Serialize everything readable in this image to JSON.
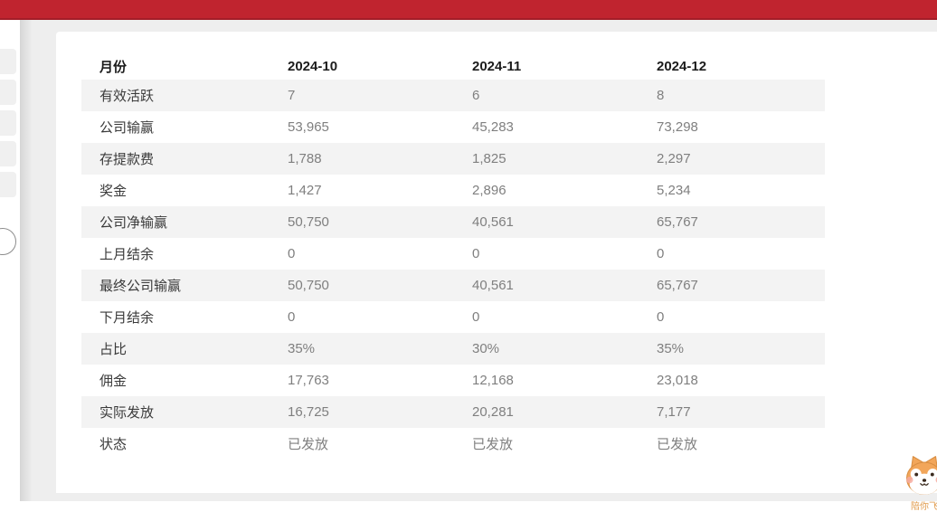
{
  "topbar": {
    "color": "#c0242f"
  },
  "table": {
    "header": [
      "月份",
      "2024-10",
      "2024-11",
      "2024-12"
    ],
    "rows": [
      {
        "label": "有效活跃",
        "values": [
          "7",
          "6",
          "8"
        ]
      },
      {
        "label": "公司输赢",
        "values": [
          "53,965",
          "45,283",
          "73,298"
        ]
      },
      {
        "label": "存提款费",
        "values": [
          "1,788",
          "1,825",
          "2,297"
        ]
      },
      {
        "label": "奖金",
        "values": [
          "1,427",
          "2,896",
          "5,234"
        ]
      },
      {
        "label": "公司净输赢",
        "values": [
          "50,750",
          "40,561",
          "65,767"
        ]
      },
      {
        "label": "上月结余",
        "values": [
          "0",
          "0",
          "0"
        ]
      },
      {
        "label": "最终公司输赢",
        "values": [
          "50,750",
          "40,561",
          "65,767"
        ]
      },
      {
        "label": "下月结余",
        "values": [
          "0",
          "0",
          "0"
        ]
      },
      {
        "label": "占比",
        "values": [
          "35%",
          "30%",
          "35%"
        ]
      },
      {
        "label": "佣金",
        "values": [
          "17,763",
          "12,168",
          "23,018"
        ]
      },
      {
        "label": "实际发放",
        "values": [
          "16,725",
          "20,281",
          "7,177"
        ]
      },
      {
        "label": "状态",
        "values": [
          "已发放",
          "已发放",
          "已发放"
        ]
      }
    ]
  },
  "mascot": {
    "label": "陪你飞"
  },
  "colors": {
    "topbar": "#c0242f",
    "stripe": "#f3f3f3",
    "page_bg": "#eeeeee",
    "label_text": "#3a3a3a",
    "value_text": "#7f7f7f"
  }
}
